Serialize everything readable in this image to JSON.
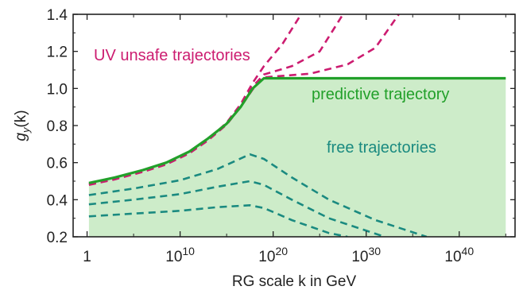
{
  "chart_data": {
    "type": "line",
    "title": "",
    "xlabel": "RG scale k in GeV",
    "ylabel": "g_y(k)",
    "x_scale": "log",
    "xlim_log10": [
      -1.5,
      46
    ],
    "ylim": [
      0.2,
      1.4
    ],
    "x_ticks": [
      {
        "log10": 0,
        "base": "1",
        "exp": ""
      },
      {
        "log10": 10,
        "base": "10",
        "exp": "10"
      },
      {
        "log10": 20,
        "base": "10",
        "exp": "20"
      },
      {
        "log10": 30,
        "base": "10",
        "exp": "30"
      },
      {
        "log10": 40,
        "base": "10",
        "exp": "40"
      }
    ],
    "y_ticks": [
      "0.2",
      "0.4",
      "0.6",
      "0.8",
      "1.0",
      "1.2",
      "1.4"
    ],
    "annotations": {
      "uv": "UV unsafe trajectories",
      "predictive": "predictive trajectory",
      "free": "free trajectories"
    },
    "colors": {
      "uv": "#cc1c70",
      "predictive": "#22a02a",
      "free": "#1a8a80",
      "fill": "#cdecc9",
      "axis": "#222222"
    },
    "fill_region": {
      "x_log10": [
        0.2,
        45
      ],
      "upper_y": [
        0.49,
        0.52,
        0.56,
        0.6,
        0.66,
        0.73,
        0.81,
        0.9,
        1.0,
        1.055,
        1.055,
        1.055
      ],
      "upper_x_log10": [
        0.2,
        3,
        6,
        8.5,
        11,
        13,
        15,
        16.5,
        17.8,
        19,
        30,
        45
      ]
    },
    "series": [
      {
        "group": "predictive",
        "style": "solid",
        "x_log10": [
          0.2,
          3,
          6,
          8.5,
          11,
          13,
          15,
          16.5,
          17.8,
          19,
          30,
          45
        ],
        "y": [
          0.49,
          0.52,
          0.56,
          0.6,
          0.66,
          0.73,
          0.81,
          0.9,
          1.0,
          1.055,
          1.055,
          1.055
        ]
      },
      {
        "group": "uv",
        "style": "dashed",
        "x_log10": [
          0.2,
          3,
          6,
          8.5,
          11,
          13,
          15,
          16.5,
          17.8,
          19,
          21,
          23
        ],
        "y": [
          0.485,
          0.515,
          0.555,
          0.595,
          0.655,
          0.725,
          0.815,
          0.915,
          1.03,
          1.12,
          1.24,
          1.4
        ]
      },
      {
        "group": "uv",
        "style": "dashed",
        "x_log10": [
          0.2,
          3,
          6,
          8.5,
          11,
          13,
          15,
          16.5,
          17.8,
          19,
          22,
          25,
          27.5
        ],
        "y": [
          0.483,
          0.513,
          0.553,
          0.592,
          0.652,
          0.722,
          0.808,
          0.905,
          1.01,
          1.075,
          1.12,
          1.2,
          1.4
        ]
      },
      {
        "group": "uv",
        "style": "dashed",
        "x_log10": [
          0.2,
          3,
          6,
          8.5,
          11,
          13,
          15,
          16.5,
          17.8,
          19,
          24,
          28,
          31,
          33.5
        ],
        "y": [
          0.48,
          0.51,
          0.55,
          0.59,
          0.65,
          0.72,
          0.805,
          0.9,
          0.995,
          1.06,
          1.08,
          1.13,
          1.22,
          1.4
        ]
      },
      {
        "group": "free",
        "style": "dashed",
        "x_log10": [
          0.2,
          5,
          10,
          14,
          17.5,
          19,
          22,
          26,
          31,
          36.5
        ],
        "y": [
          0.425,
          0.46,
          0.505,
          0.565,
          0.645,
          0.62,
          0.52,
          0.4,
          0.29,
          0.2
        ]
      },
      {
        "group": "free",
        "style": "dashed",
        "x_log10": [
          0.2,
          5,
          10,
          14,
          17.5,
          19,
          22,
          26,
          32
        ],
        "y": [
          0.375,
          0.4,
          0.43,
          0.47,
          0.5,
          0.48,
          0.4,
          0.3,
          0.2
        ]
      },
      {
        "group": "free",
        "style": "dashed",
        "x_log10": [
          0.2,
          5,
          10,
          14,
          17.5,
          19,
          22,
          26,
          28
        ],
        "y": [
          0.31,
          0.325,
          0.34,
          0.36,
          0.37,
          0.355,
          0.29,
          0.22,
          0.2
        ]
      }
    ]
  }
}
